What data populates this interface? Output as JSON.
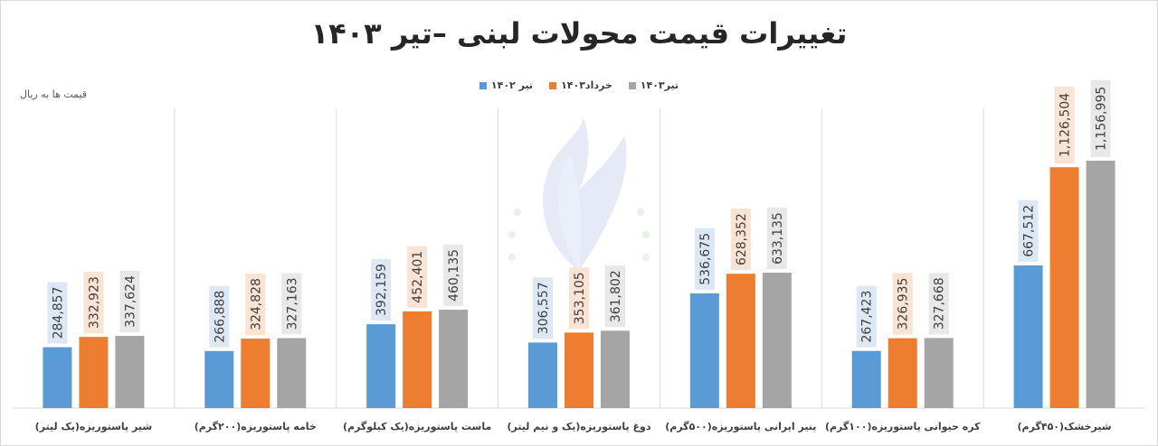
{
  "chart_data": {
    "type": "bar",
    "title": "تغییرات قیمت محولات لبنی –تیر ۱۴۰۳",
    "ylabel": "قیمت ها به ریال",
    "ylim": [
      0,
      1200000
    ],
    "grid": false,
    "legend_position": "top",
    "categories": [
      "شیر پاستوریزه(یک لیتر)",
      "خامه پاستوریزه(۲۰۰گرم)",
      "ماست پاستوریزه(یک کیلوگرم)",
      "دوغ پاستوریزه(یک و نیم لیتر)",
      "پنیر ایرانی پاستوریزه(۵۰۰گرم)",
      "کره حیوانی پاستوریزه(۱۰۰گرم)",
      "شیرخشک(۴۵۰گرم)"
    ],
    "series": [
      {
        "name": "تیر ۱۴۰۲",
        "color": "#5b9bd5",
        "label_bg": "#dde8f5",
        "values": [
          284857,
          266888,
          392159,
          306557,
          536675,
          267423,
          667512
        ],
        "labels": [
          "284,857",
          "266,888",
          "392,159",
          "306,557",
          "536,675",
          "267,423",
          "667,512"
        ]
      },
      {
        "name": "خرداد۱۴۰۳",
        "color": "#ed7d31",
        "label_bg": "#fbe3d4",
        "values": [
          332923,
          324828,
          452401,
          353105,
          628352,
          326935,
          1126504
        ],
        "labels": [
          "332,923",
          "324,828",
          "452,401",
          "353,105",
          "628,352",
          "326,935",
          "1,126,504"
        ]
      },
      {
        "name": "تیر۱۴۰۳",
        "color": "#a5a5a5",
        "label_bg": "#e8e8e8",
        "values": [
          337624,
          327163,
          460135,
          361802,
          633135,
          327668,
          1156995
        ],
        "labels": [
          "337,624",
          "327,163",
          "460,135",
          "361,802",
          "633,135",
          "327,668",
          "1,156,995"
        ]
      }
    ]
  }
}
